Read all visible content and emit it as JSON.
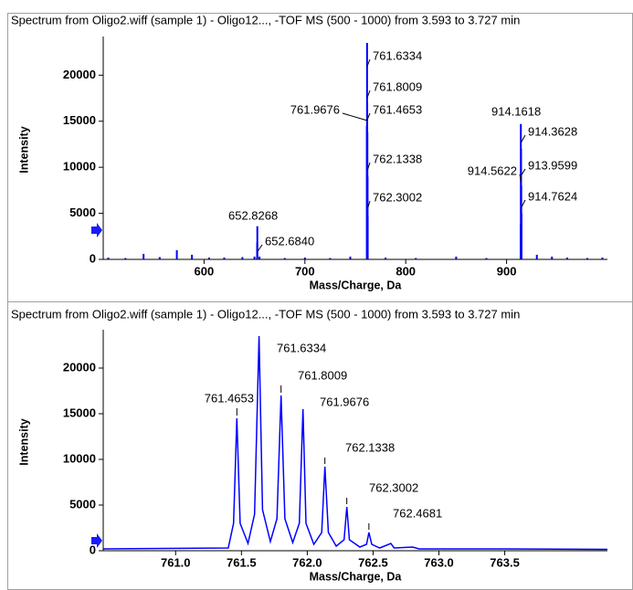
{
  "chart_data": [
    {
      "type": "stem",
      "title": "Spectrum from Oligo2.wiff (sample 1) - Oligo12..., -TOF MS (500 - 1000) from 3.593 to 3.727 min",
      "x_label": "Mass/Charge, Da",
      "y_label": "Intensity",
      "color": "#0000ff",
      "xlim": [
        500,
        1000
      ],
      "xticks": [
        600,
        700,
        800,
        900
      ],
      "ylim": [
        0,
        23800
      ],
      "yticks": [
        0,
        5000,
        10000,
        15000,
        20000
      ],
      "x": [
        505,
        522,
        540,
        556,
        573,
        588,
        605,
        620,
        638,
        650,
        652.684,
        652.8268,
        655,
        680,
        700,
        725,
        745,
        761.4653,
        761.6334,
        761.8009,
        761.9676,
        762.1338,
        762.3002,
        780,
        810,
        850,
        880,
        913.9599,
        914.1618,
        914.3628,
        914.5622,
        914.7624,
        930,
        945,
        960,
        980,
        995
      ],
      "values": [
        200,
        150,
        600,
        250,
        1000,
        500,
        200,
        200,
        250,
        300,
        1800,
        3600,
        300,
        150,
        200,
        150,
        300,
        14500,
        23500,
        17000,
        13800,
        9000,
        4700,
        200,
        150,
        300,
        150,
        3800,
        14700,
        12000,
        8000,
        5000,
        500,
        300,
        200,
        150,
        200
      ],
      "peak_labels": [
        652.8268,
        {
          "value": 652.684,
          "label": "652.6840"
        },
        761.6334,
        761.8009,
        761.9676,
        761.4653,
        762.1338,
        762.3002,
        914.1618,
        914.3628,
        914.5622,
        913.9599,
        914.7624
      ]
    },
    {
      "type": "line",
      "title": "Spectrum from Oligo2.wiff (sample 1) - Oligo12..., -TOF MS (500 - 1000) from 3.593 to 3.727 min",
      "x_label": "Mass/Charge, Da",
      "y_label": "Intensity",
      "color": "#0000ff",
      "xlim": [
        760.45,
        764.28
      ],
      "xticks": [
        {
          "value": 761,
          "label": "761.0"
        },
        761.5,
        {
          "value": 762,
          "label": "762.0"
        },
        762.5,
        {
          "value": 763,
          "label": "763.0"
        },
        763.5
      ],
      "ylim": [
        0,
        23800
      ],
      "yticks": [
        0,
        5000,
        10000,
        15000,
        20000
      ],
      "x": [
        760.45,
        761.4,
        761.44,
        761.4653,
        761.49,
        761.55,
        761.6,
        761.6334,
        761.66,
        761.72,
        761.77,
        761.8009,
        761.83,
        761.89,
        761.94,
        761.9676,
        761.99,
        762.05,
        762.11,
        762.1338,
        762.16,
        762.22,
        762.28,
        762.3002,
        762.32,
        762.4,
        762.45,
        762.4681,
        762.49,
        762.55,
        762.635,
        762.66,
        762.8,
        762.85,
        763.5,
        764.28
      ],
      "values": [
        200,
        300,
        3000,
        14500,
        3000,
        800,
        4000,
        23500,
        4500,
        1000,
        3500,
        17000,
        3500,
        900,
        3000,
        15500,
        3000,
        700,
        2000,
        9200,
        2000,
        500,
        1200,
        4800,
        1200,
        400,
        700,
        2000,
        700,
        300,
        800,
        300,
        400,
        200,
        200,
        150
      ],
      "peak_labels": [
        761.4653,
        761.6334,
        761.8009,
        761.9676,
        762.1338,
        762.3002,
        762.4681
      ]
    }
  ]
}
